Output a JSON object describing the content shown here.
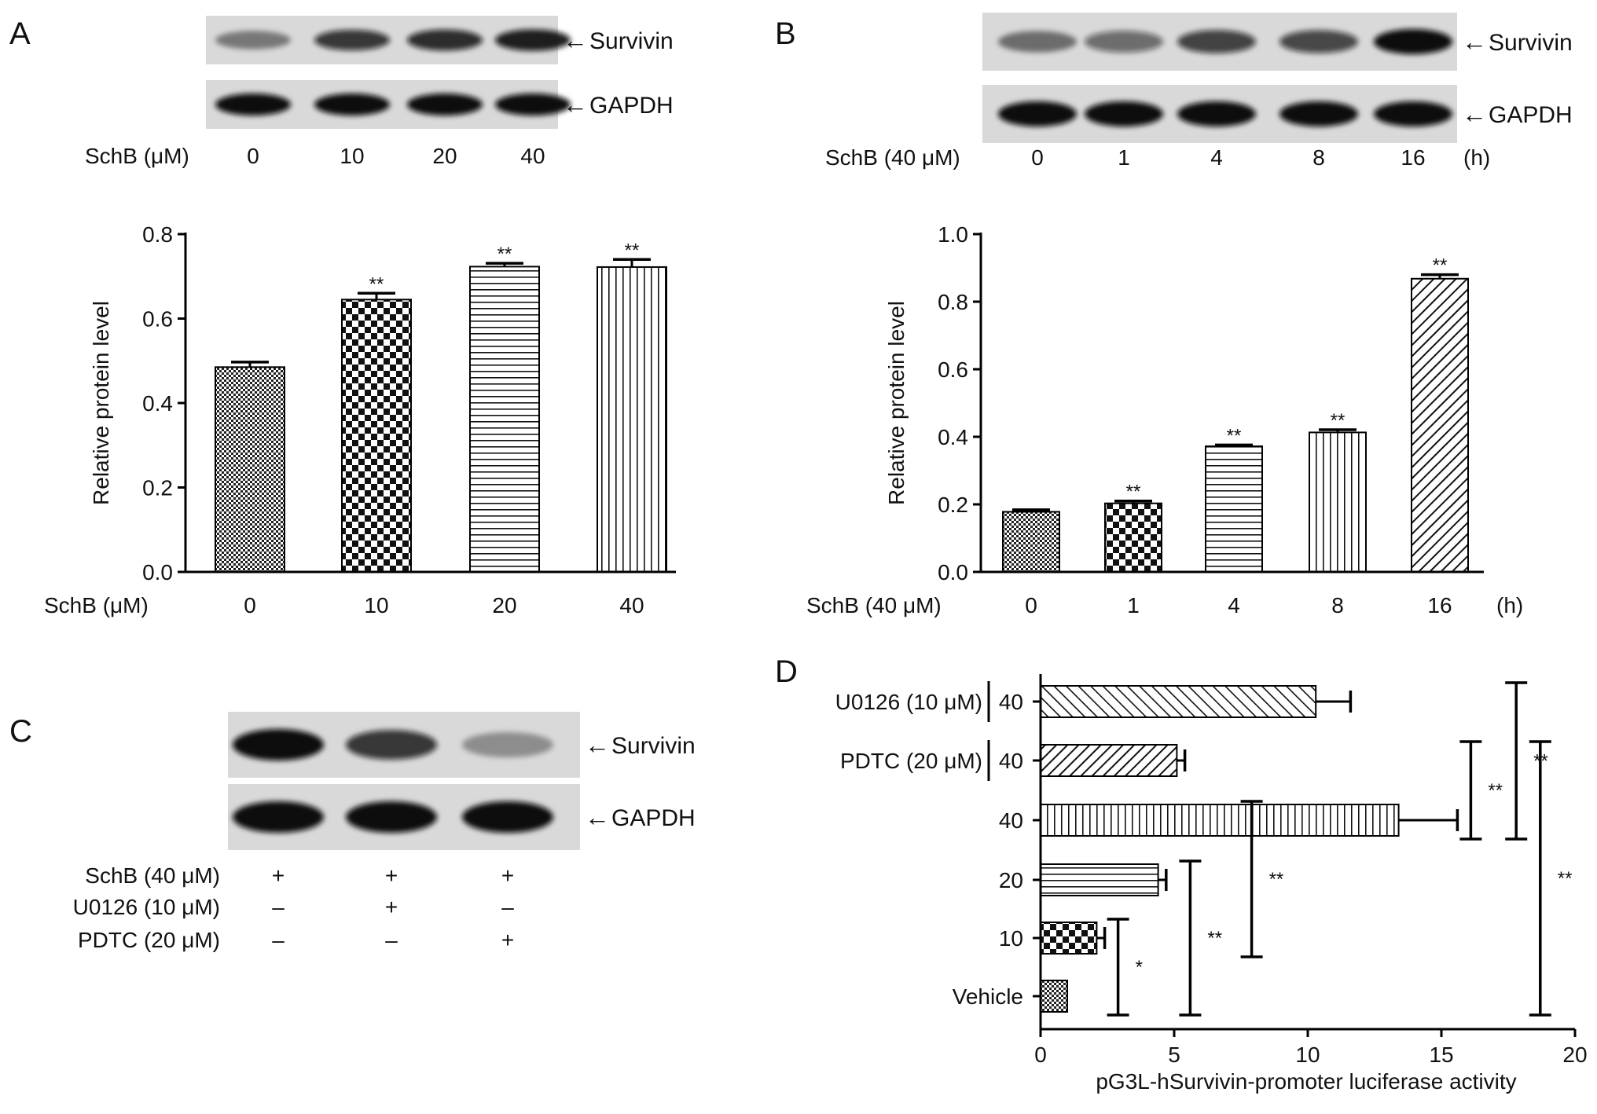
{
  "panels": {
    "A": {
      "letter": "A",
      "blot": {
        "bands": [
          {
            "label": "Survivin",
            "strength": [
              0.45,
              0.8,
              0.85,
              0.92
            ]
          },
          {
            "label": "GAPDH",
            "strength": [
              1,
              1,
              1,
              1
            ]
          }
        ],
        "treatment_label": "SchB (μM)",
        "lanes": [
          "0",
          "10",
          "20",
          "40"
        ]
      }
    },
    "B": {
      "letter": "B",
      "blot": {
        "bands": [
          {
            "label": "Survivin",
            "strength": [
              0.5,
              0.55,
              0.75,
              0.72,
              1.0
            ]
          },
          {
            "label": "GAPDH",
            "strength": [
              1,
              1,
              1,
              1,
              1
            ]
          }
        ],
        "treatment_label": "SchB (40 μM)",
        "lanes": [
          "0",
          "1",
          "4",
          "8",
          "16"
        ],
        "unit": "(h)"
      }
    },
    "C": {
      "letter": "C",
      "blot": {
        "bands": [
          {
            "label": "Survivin",
            "strength": [
              1.0,
              0.8,
              0.35
            ]
          },
          {
            "label": "GAPDH",
            "strength": [
              1,
              1,
              1
            ]
          }
        ],
        "rows": [
          {
            "label": "SchB (40 μM)",
            "values": [
              "+",
              "+",
              "+"
            ]
          },
          {
            "label": "U0126 (10 μM)",
            "values": [
              "–",
              "+",
              "–"
            ]
          },
          {
            "label": "PDTC (20 μM)",
            "values": [
              "–",
              "–",
              "+"
            ]
          }
        ]
      }
    },
    "D": {
      "letter": "D"
    }
  },
  "chart_data": [
    {
      "panel": "A",
      "type": "bar",
      "categories": [
        "0",
        "10",
        "20",
        "40"
      ],
      "values": [
        0.485,
        0.645,
        0.723,
        0.722
      ],
      "errors": [
        0.012,
        0.015,
        0.008,
        0.018
      ],
      "annotations": [
        "",
        "**",
        "**",
        "**"
      ],
      "patterns": [
        "fine-checker",
        "checker",
        "horizontal",
        "vertical"
      ],
      "xlabel": "SchB (μM)",
      "ylabel": "Relative protein level",
      "ylim": [
        0,
        0.8
      ],
      "yticks": [
        "0.0",
        "0.2",
        "0.4",
        "0.6",
        "0.8"
      ]
    },
    {
      "panel": "B",
      "type": "bar",
      "categories": [
        "0",
        "1",
        "4",
        "8",
        "16"
      ],
      "values": [
        0.178,
        0.203,
        0.372,
        0.413,
        0.868
      ],
      "errors": [
        0.006,
        0.007,
        0.004,
        0.008,
        0.012
      ],
      "annotations": [
        "",
        "**",
        "**",
        "**",
        "**"
      ],
      "patterns": [
        "fine-checker",
        "checker",
        "horizontal",
        "vertical",
        "diagonal"
      ],
      "xlabel": "SchB (40 μM)",
      "xunit": "(h)",
      "ylabel": "Relative protein level",
      "ylim": [
        0,
        1.0
      ],
      "yticks": [
        "0.0",
        "0.2",
        "0.4",
        "0.6",
        "0.8",
        "1.0"
      ]
    },
    {
      "panel": "D",
      "type": "bar",
      "orientation": "horizontal",
      "categories": [
        "Vehicle",
        "10",
        "20",
        "40",
        "40",
        "40"
      ],
      "group_labels": [
        "",
        "",
        "",
        "",
        "PDTC (20 μM)",
        "U0126 (10 μM)"
      ],
      "values": [
        1.0,
        2.1,
        4.4,
        13.4,
        5.1,
        10.3
      ],
      "errors": [
        0,
        0.3,
        0.3,
        2.2,
        0.3,
        1.3
      ],
      "patterns": [
        "fine-checker",
        "checker",
        "horizontal",
        "vertical",
        "diagonal",
        "diagonal-back"
      ],
      "xlabel": "pG3L-hSurvivin-promoter luciferase activity",
      "xlim": [
        0,
        20
      ],
      "xticks": [
        "0",
        "5",
        "10",
        "15",
        "20"
      ],
      "comparisons": [
        {
          "from": 0,
          "to": 1,
          "label": "*",
          "x": 2.9
        },
        {
          "from": 0,
          "to": 2,
          "label": "**",
          "x": 5.6
        },
        {
          "from": 1,
          "to": 3,
          "label": "**",
          "x": 7.9
        },
        {
          "from": 0,
          "to": 4,
          "label": "**",
          "x": 18.7
        },
        {
          "from": 3,
          "to": 4,
          "label": "**",
          "x": 16.1
        },
        {
          "from": 3,
          "to": 5,
          "label": "**",
          "x": 17.8
        }
      ]
    }
  ]
}
